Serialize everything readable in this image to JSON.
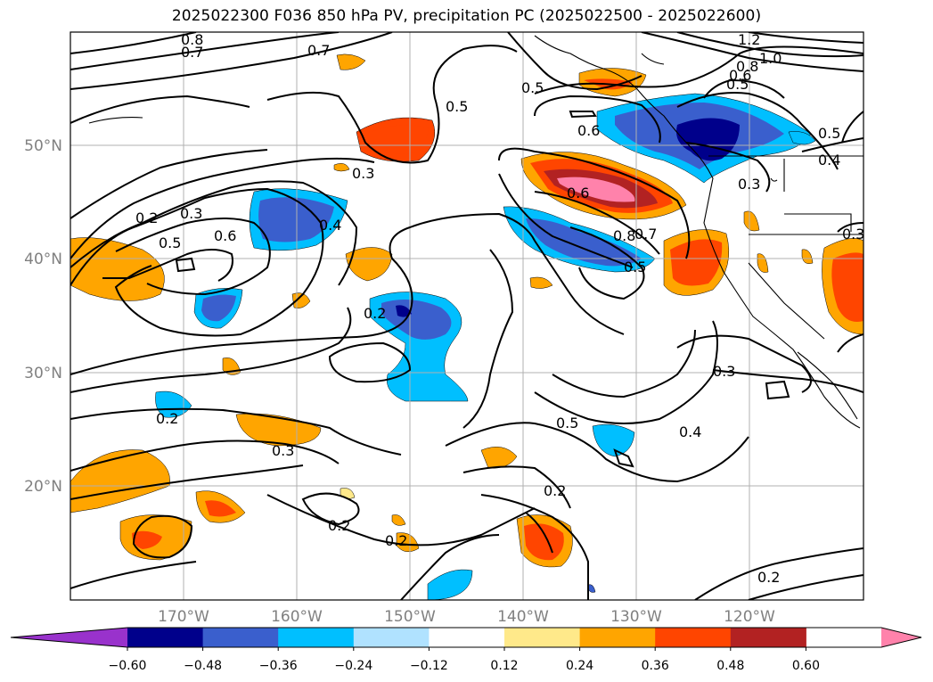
{
  "title": "2025022300 F036 850 hPa PV, precipitation PC (2025022500 - 2025022600)",
  "map": {
    "lon_labels": [
      "170°W",
      "160°W",
      "150°W",
      "140°W",
      "130°W",
      "120°W"
    ],
    "lat_labels": [
      "50°N",
      "40°N",
      "30°N",
      "20°N"
    ],
    "contour_labels": [
      "0.8",
      "0.7",
      "0.7",
      "1.2",
      "1.0",
      "0.8",
      "0.6",
      "0.5",
      "0.5",
      "0.5",
      "0.6",
      "0.5",
      "0.4",
      "0.3",
      "0.3",
      "0.3",
      "0.2",
      "0.3",
      "0.5",
      "0.6",
      "0.4",
      "0.6",
      "0.8",
      "0.7",
      "0.5",
      "0.2",
      "0.3",
      "0.2",
      "0.3",
      "0.5",
      "0.4",
      "0.2",
      "0.2",
      "0.2",
      "0.2"
    ]
  },
  "colorbar": {
    "ticks": [
      "−0.60",
      "−0.48",
      "−0.36",
      "−0.24",
      "−0.12",
      "0.12",
      "0.24",
      "0.36",
      "0.48",
      "0.60"
    ],
    "colors": [
      "#9932cc",
      "#00008b",
      "#3a5fcd",
      "#00bfff",
      "#b0e2ff",
      "#ffffff",
      "#ffe98a",
      "#ffa500",
      "#ff4500",
      "#b22222",
      "#ff82ab"
    ]
  }
}
